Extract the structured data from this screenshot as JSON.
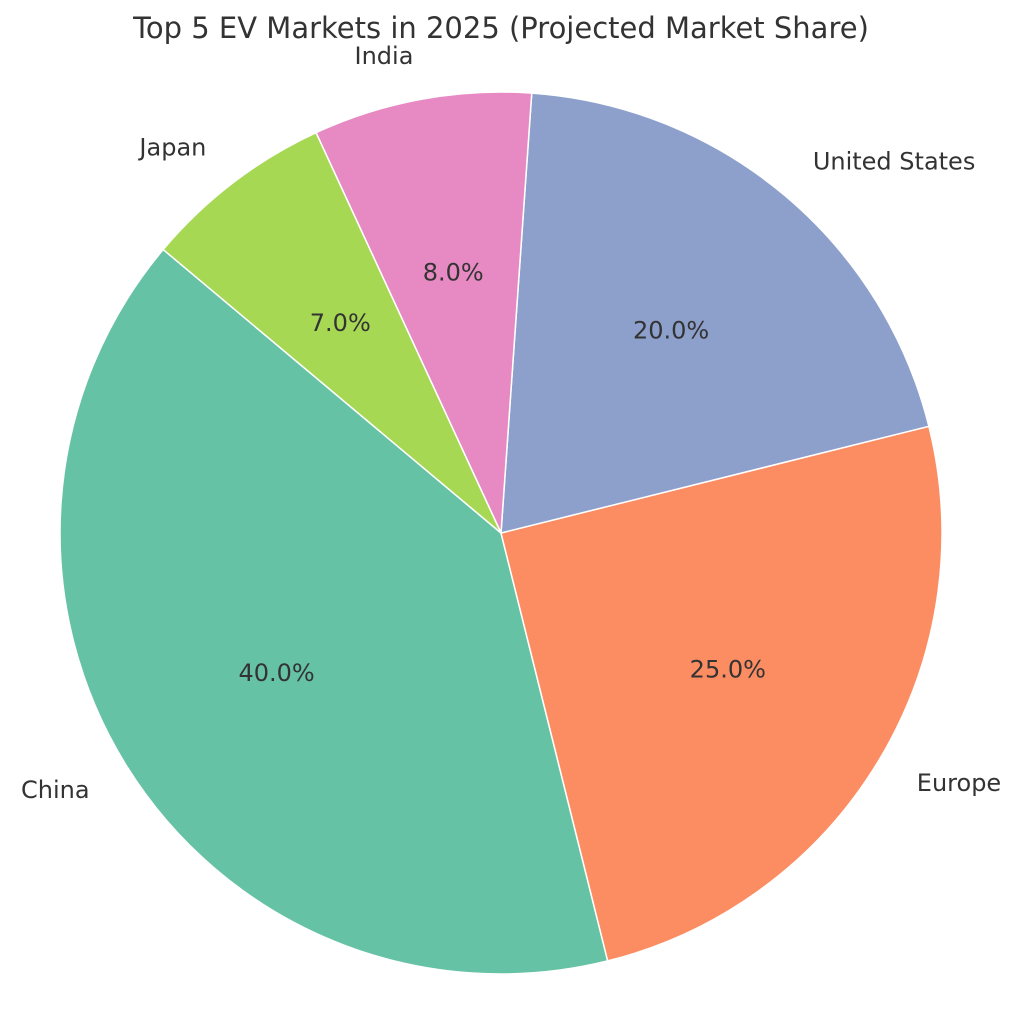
{
  "chart_data": {
    "type": "pie",
    "title": "Top 5 EV Markets in 2025 (Projected Market Share)",
    "start_angle_deg": 140,
    "direction": "counterclockwise",
    "slices": [
      {
        "label": "China",
        "value": 40.0,
        "pct_label": "40.0%",
        "color": "#66c2a5"
      },
      {
        "label": "Europe",
        "value": 25.0,
        "pct_label": "25.0%",
        "color": "#fc8d62"
      },
      {
        "label": "United States",
        "value": 20.0,
        "pct_label": "20.0%",
        "color": "#8da0cb"
      },
      {
        "label": "India",
        "value": 8.0,
        "pct_label": "8.0%",
        "color": "#e78ac3"
      },
      {
        "label": "Japan",
        "value": 7.0,
        "pct_label": "7.0%",
        "color": "#a6d854"
      }
    ]
  }
}
